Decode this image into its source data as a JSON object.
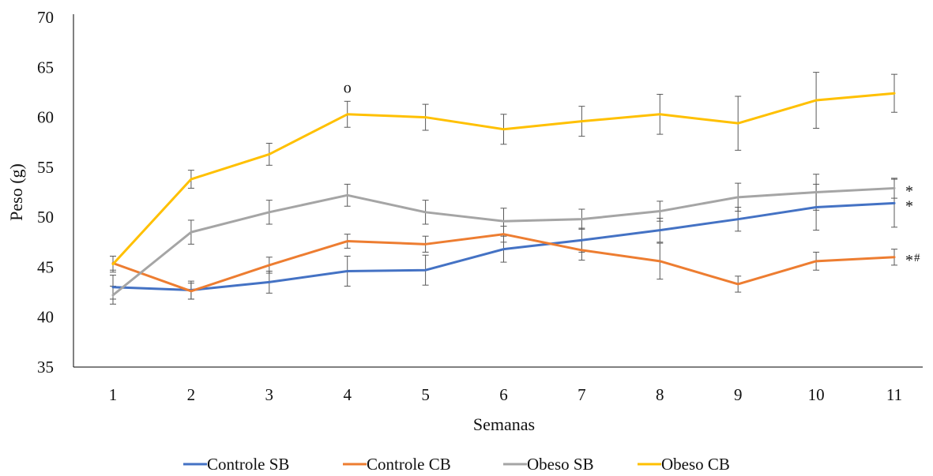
{
  "chart_data": {
    "type": "line",
    "title": "",
    "xlabel": "Semanas",
    "ylabel": "Peso (g)",
    "x": [
      1,
      2,
      3,
      4,
      5,
      6,
      7,
      8,
      9,
      10,
      11
    ],
    "ylim": [
      35,
      70
    ],
    "yticks": [
      35,
      40,
      45,
      50,
      55,
      60,
      65,
      70
    ],
    "grid": false,
    "legend_position": "bottom",
    "series": [
      {
        "name": "Controle SB",
        "color": "#4472C4",
        "values": [
          43.0,
          42.7,
          43.5,
          44.6,
          44.7,
          46.8,
          47.7,
          48.7,
          49.8,
          51.0,
          51.4
        ],
        "errors": [
          1.2,
          0.9,
          1.1,
          1.5,
          1.5,
          1.3,
          1.2,
          1.2,
          1.2,
          2.3,
          2.4
        ]
      },
      {
        "name": "Controle CB",
        "color": "#ED7D31",
        "values": [
          45.4,
          42.6,
          45.2,
          47.6,
          47.3,
          48.3,
          46.7,
          45.6,
          43.3,
          45.6,
          46.0
        ],
        "errors": [
          0.7,
          0.8,
          0.8,
          0.7,
          0.8,
          0.8,
          1.0,
          1.8,
          0.8,
          0.9,
          0.8
        ]
      },
      {
        "name": "Obeso SB",
        "color": "#A5A5A5",
        "values": [
          42.2,
          48.5,
          50.5,
          52.2,
          50.5,
          49.6,
          49.8,
          50.6,
          52.0,
          52.5,
          52.9
        ],
        "errors": [
          0.9,
          1.2,
          1.2,
          1.1,
          1.2,
          1.3,
          1.0,
          1.0,
          1.4,
          1.8,
          1.0
        ]
      },
      {
        "name": "Obeso CB",
        "color": "#FFC000",
        "values": [
          45.3,
          53.8,
          56.3,
          60.3,
          60.0,
          58.8,
          59.6,
          60.3,
          59.4,
          61.7,
          62.4
        ],
        "errors": [
          0.8,
          0.9,
          1.1,
          1.3,
          1.3,
          1.5,
          1.5,
          2.0,
          2.7,
          2.8,
          1.9
        ]
      }
    ],
    "annotations": [
      {
        "text": "o",
        "x": 4,
        "series": "Obeso CB"
      },
      {
        "text": "*",
        "x": 11,
        "series": "Obeso SB"
      },
      {
        "text": "*",
        "x": 11,
        "series": "Controle SB"
      },
      {
        "text": "*",
        "x": 11,
        "series": "Controle CB",
        "suffix": "#"
      }
    ]
  }
}
